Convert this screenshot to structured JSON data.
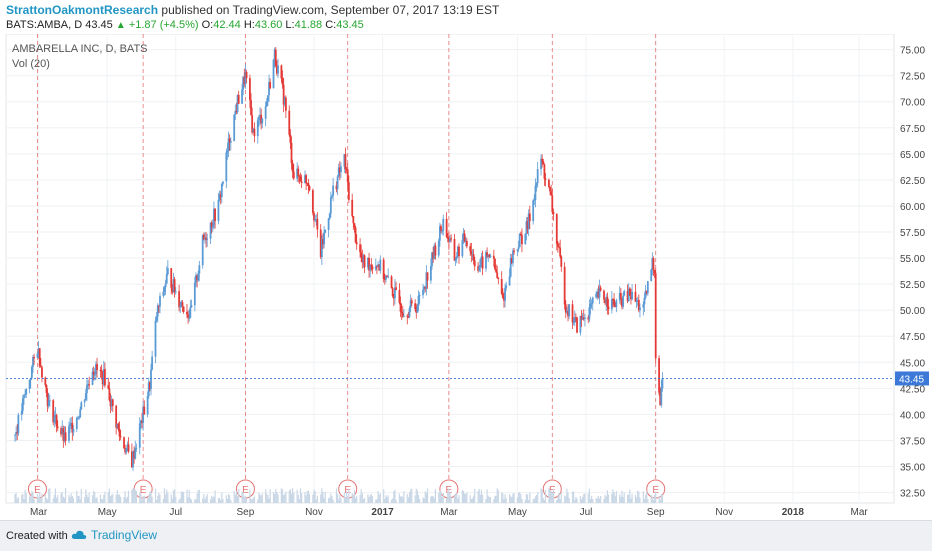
{
  "header": {
    "author": "StrattonOakmontResearch",
    "published_text": "published on TradingView.com, September 07, 2017 13:19 EST"
  },
  "ohlc_bar": {
    "symbol": "BATS:AMBA, D",
    "last": "43.45",
    "change": "+1.87 (+4.5%)",
    "o_label": "O:",
    "o_value": "42.44",
    "h_label": "H:",
    "h_value": "43.60",
    "l_label": "L:",
    "l_value": "41.88",
    "c_label": "C:",
    "c_value": "43.45"
  },
  "footer": {
    "created_with": "Created with",
    "brand": "TradingView"
  },
  "colors": {
    "up": "#5b9bd5",
    "down": "#e53935",
    "last_price": "#3b78d8",
    "earnings": "#e57373",
    "author": "#2196c4"
  },
  "chart_data": {
    "type": "candlestick",
    "legend": [
      "AMBARELLA INC, D, BATS",
      "Vol (20)"
    ],
    "x_tick_labels": [
      "Mar",
      "May",
      "Jul",
      "Sep",
      "Nov",
      "2017",
      "Mar",
      "May",
      "Jul",
      "Sep",
      "Nov",
      "2018",
      "Mar"
    ],
    "y_tick_labels": [
      "32.50",
      "35.00",
      "37.50",
      "40.00",
      "42.50",
      "45.00",
      "47.50",
      "50.00",
      "52.50",
      "55.00",
      "57.50",
      "60.00",
      "62.50",
      "65.00",
      "67.50",
      "70.00",
      "72.50",
      "75.00"
    ],
    "ylim": [
      31.5,
      76.5
    ],
    "last_price_label": "43.45",
    "earnings_marker": "E",
    "earnings_months": [
      "Mar 2016",
      "Jun 2016",
      "Sep 2016",
      "Dec 2016",
      "Mar 2017",
      "Jun 2017",
      "Sep 2017"
    ],
    "price_path": [
      {
        "date": "2016-02-09",
        "close": 38.0
      },
      {
        "date": "2016-02-22",
        "close": 43.5
      },
      {
        "date": "2016-02-29",
        "close": 46.5
      },
      {
        "date": "2016-03-10",
        "close": 41.0
      },
      {
        "date": "2016-03-24",
        "close": 37.5
      },
      {
        "date": "2016-04-07",
        "close": 40.5
      },
      {
        "date": "2016-04-18",
        "close": 44.5
      },
      {
        "date": "2016-04-29",
        "close": 43.5
      },
      {
        "date": "2016-05-12",
        "close": 38.0
      },
      {
        "date": "2016-05-23",
        "close": 35.5
      },
      {
        "date": "2016-06-02",
        "close": 40.0
      },
      {
        "date": "2016-06-08",
        "close": 43.0
      },
      {
        "date": "2016-06-14",
        "close": 49.5
      },
      {
        "date": "2016-06-24",
        "close": 53.5
      },
      {
        "date": "2016-07-04",
        "close": 51.0
      },
      {
        "date": "2016-07-14",
        "close": 49.5
      },
      {
        "date": "2016-07-25",
        "close": 56.5
      },
      {
        "date": "2016-08-08",
        "close": 60.0
      },
      {
        "date": "2016-08-18",
        "close": 66.5
      },
      {
        "date": "2016-08-25",
        "close": 70.0
      },
      {
        "date": "2016-09-01",
        "close": 72.5
      },
      {
        "date": "2016-09-08",
        "close": 67.0
      },
      {
        "date": "2016-09-19",
        "close": 69.5
      },
      {
        "date": "2016-09-27",
        "close": 74.5
      },
      {
        "date": "2016-10-06",
        "close": 70.0
      },
      {
        "date": "2016-10-14",
        "close": 63.0
      },
      {
        "date": "2016-10-27",
        "close": 62.5
      },
      {
        "date": "2016-11-07",
        "close": 55.5
      },
      {
        "date": "2016-11-18",
        "close": 61.5
      },
      {
        "date": "2016-11-28",
        "close": 64.5
      },
      {
        "date": "2016-12-06",
        "close": 58.0
      },
      {
        "date": "2016-12-14",
        "close": 54.5
      },
      {
        "date": "2016-12-28",
        "close": 54.5
      },
      {
        "date": "2017-01-09",
        "close": 52.0
      },
      {
        "date": "2017-01-20",
        "close": 50.0
      },
      {
        "date": "2017-02-01",
        "close": 50.5
      },
      {
        "date": "2017-02-13",
        "close": 54.5
      },
      {
        "date": "2017-02-24",
        "close": 58.5
      },
      {
        "date": "2017-03-06",
        "close": 55.0
      },
      {
        "date": "2017-03-16",
        "close": 57.0
      },
      {
        "date": "2017-03-27",
        "close": 54.0
      },
      {
        "date": "2017-04-07",
        "close": 55.5
      },
      {
        "date": "2017-04-18",
        "close": 51.0
      },
      {
        "date": "2017-04-27",
        "close": 55.5
      },
      {
        "date": "2017-05-10",
        "close": 58.0
      },
      {
        "date": "2017-05-22",
        "close": 64.5
      },
      {
        "date": "2017-05-31",
        "close": 60.5
      },
      {
        "date": "2017-06-08",
        "close": 54.5
      },
      {
        "date": "2017-06-13",
        "close": 50.5
      },
      {
        "date": "2017-06-23",
        "close": 48.5
      },
      {
        "date": "2017-07-04",
        "close": 50.0
      },
      {
        "date": "2017-07-13",
        "close": 51.5
      },
      {
        "date": "2017-07-26",
        "close": 50.5
      },
      {
        "date": "2017-08-09",
        "close": 51.5
      },
      {
        "date": "2017-08-21",
        "close": 50.0
      },
      {
        "date": "2017-08-29",
        "close": 54.5
      },
      {
        "date": "2017-08-31",
        "close": 54.0
      },
      {
        "date": "2017-09-01",
        "close": 46.0
      },
      {
        "date": "2017-09-05",
        "close": 41.0
      },
      {
        "date": "2017-09-07",
        "close": 43.45
      }
    ],
    "volume_scale": [
      0,
      1
    ],
    "grid": true,
    "legend_position": "top-left"
  }
}
